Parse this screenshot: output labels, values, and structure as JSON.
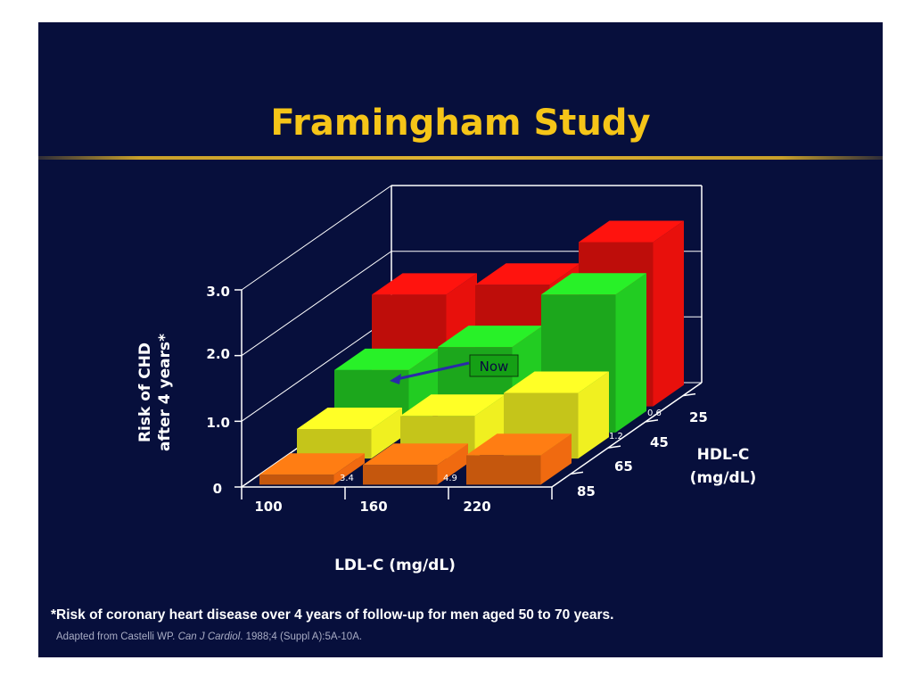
{
  "slide": {
    "title": "Framingham Study",
    "footnote": "*Risk of coronary heart disease over 4 years of follow-up for men aged 50 to 70 years.",
    "source_prefix": "Adapted from Castelli WP.",
    "source_journal": "Can J Cardiol",
    "source_suffix": ". 1988;4 (Suppl A):5A-10A."
  },
  "colors": {
    "background": "#070f3c",
    "title": "#f5c518",
    "hdl_25": "#e8100c",
    "hdl_45": "#22cc22",
    "hdl_65": "#f0f020",
    "hdl_85": "#f06a10"
  },
  "chart_data": {
    "type": "bar",
    "title": "Framingham Study",
    "xlabel": "LDL-C (mg/dL)",
    "ylabel_line1": "Risk of CHD",
    "ylabel_line2": "after 4 years*",
    "zlabel_line1": "HDL-C",
    "zlabel_line2": "(mg/dL)",
    "categories": [
      "100",
      "160",
      "220"
    ],
    "ylim": [
      0,
      3.0
    ],
    "yticks": [
      "0",
      "1.0",
      "2.0",
      "3.0"
    ],
    "ytick_values": [
      0,
      1,
      2,
      3
    ],
    "series": [
      {
        "name": "25",
        "color": "#e8100c",
        "values": [
          1.7,
          1.85,
          2.5
        ]
      },
      {
        "name": "45",
        "color": "#22cc22",
        "values": [
          0.95,
          1.3,
          2.1
        ]
      },
      {
        "name": "65",
        "color": "#f0f020",
        "values": [
          0.45,
          0.65,
          1.0
        ]
      },
      {
        "name": "85",
        "color": "#f06a10",
        "values": [
          0.15,
          0.3,
          0.45
        ]
      }
    ],
    "data_labels": [
      "3.4",
      "4.9",
      "0.6",
      "1.2"
    ],
    "annotation": "Now"
  }
}
